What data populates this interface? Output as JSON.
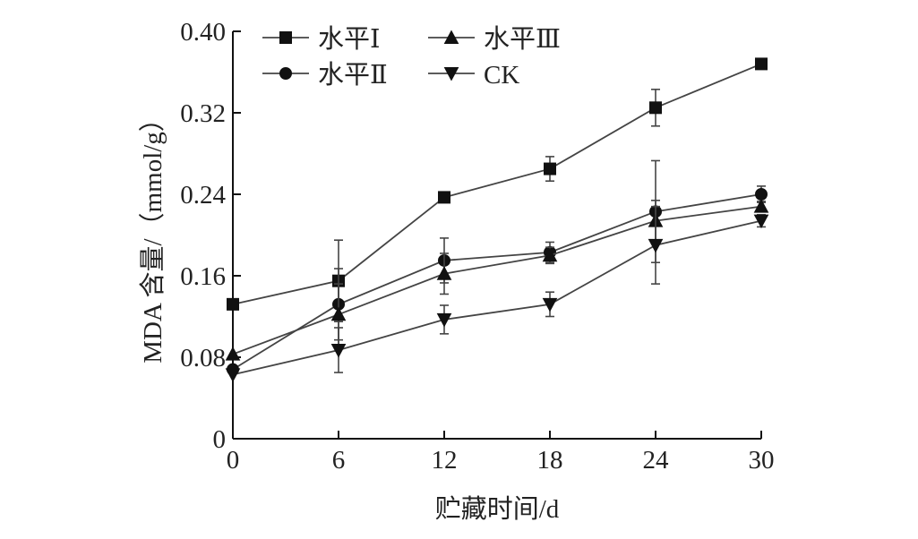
{
  "chart_data": {
    "type": "line",
    "title": "",
    "xlabel": "贮藏时间/d",
    "ylabel": "MDA 含量/（mmol/g）",
    "x": [
      0,
      6,
      12,
      18,
      24,
      30
    ],
    "xticks": [
      "0",
      "6",
      "12",
      "18",
      "24",
      "30"
    ],
    "xlim": [
      0,
      30
    ],
    "yticks": [
      "0",
      "0.08",
      "0.16",
      "0.24",
      "0.32",
      "0.40"
    ],
    "ylim": [
      0,
      0.4
    ],
    "grid": false,
    "legend_position": "top",
    "series": [
      {
        "name": "水平Ⅰ",
        "marker": "square",
        "values": [
          0.132,
          0.155,
          0.237,
          0.265,
          0.325,
          0.368
        ],
        "errors": [
          0.0,
          0.04,
          0.004,
          0.012,
          0.018,
          0.005
        ]
      },
      {
        "name": "水平Ⅱ",
        "marker": "circle",
        "values": [
          0.068,
          0.132,
          0.175,
          0.183,
          0.223,
          0.24
        ],
        "errors": [
          0.0,
          0.035,
          0.022,
          0.01,
          0.05,
          0.008
        ]
      },
      {
        "name": "水平Ⅲ",
        "marker": "triangle-up",
        "values": [
          0.083,
          0.122,
          0.162,
          0.18,
          0.214,
          0.228
        ],
        "errors": [
          0.0,
          0.03,
          0.02,
          0.008,
          0.02,
          0.005
        ]
      },
      {
        "name": "CK",
        "marker": "triangle-down",
        "values": [
          0.063,
          0.087,
          0.117,
          0.132,
          0.19,
          0.214
        ],
        "errors": [
          0.0,
          0.022,
          0.014,
          0.012,
          0.038,
          0.006
        ]
      }
    ],
    "legend_order": [
      0,
      2,
      1,
      3
    ]
  }
}
